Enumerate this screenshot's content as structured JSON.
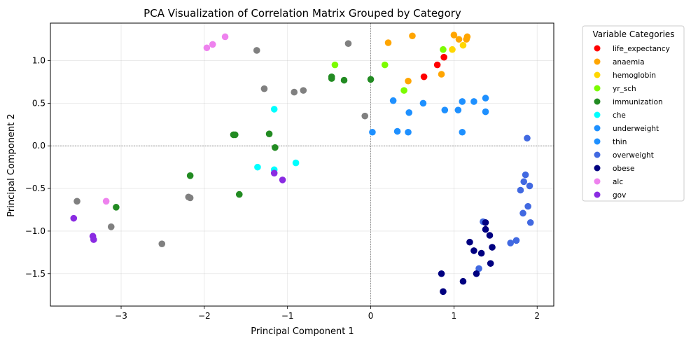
{
  "chart_data": {
    "type": "scatter",
    "title": "PCA Visualization of Correlation Matrix Grouped by Category",
    "xlabel": "Principal Component 1",
    "ylabel": "Principal Component 2",
    "xlim": [
      -3.85,
      2.2
    ],
    "ylim": [
      -1.88,
      1.44
    ],
    "xticks": [
      -3,
      -2,
      -1,
      0,
      1,
      2
    ],
    "xtick_labels": [
      "−3",
      "−2",
      "−1",
      "0",
      "1",
      "2"
    ],
    "yticks": [
      -1.5,
      -1.0,
      -0.5,
      0.0,
      0.5,
      1.0
    ],
    "ytick_labels": [
      "−1.5",
      "−1.0",
      "−0.5",
      "0.0",
      "0.5",
      "1.0"
    ],
    "grid": true,
    "zero_lines": true,
    "legend": {
      "title": "Variable Categories",
      "placement": "outside-right"
    },
    "series": [
      {
        "name": "life_expectancy",
        "color": "#ff0000",
        "points": [
          [
            0.8,
            0.95
          ],
          [
            0.88,
            1.04
          ],
          [
            0.64,
            0.81
          ]
        ]
      },
      {
        "name": "anaemia",
        "color": "#ffa500",
        "points": [
          [
            0.21,
            1.21
          ],
          [
            0.5,
            1.29
          ],
          [
            1.0,
            1.3
          ],
          [
            1.06,
            1.25
          ],
          [
            1.15,
            1.25
          ],
          [
            1.16,
            1.28
          ],
          [
            0.45,
            0.76
          ],
          [
            0.85,
            0.84
          ]
        ]
      },
      {
        "name": "hemoglobin",
        "color": "#ffd700",
        "points": [
          [
            0.98,
            1.13
          ],
          [
            1.11,
            1.18
          ]
        ]
      },
      {
        "name": "yr_sch",
        "color": "#7cfc00",
        "points": [
          [
            -0.43,
            0.95
          ],
          [
            0.17,
            0.95
          ],
          [
            0.87,
            1.13
          ],
          [
            0.4,
            0.65
          ]
        ]
      },
      {
        "name": "immunization",
        "color": "#228b22",
        "points": [
          [
            -0.47,
            0.81
          ],
          [
            -0.47,
            0.79
          ],
          [
            -0.32,
            0.77
          ],
          [
            0.0,
            0.78
          ],
          [
            -1.65,
            0.13
          ],
          [
            -1.63,
            0.13
          ],
          [
            -1.22,
            0.14
          ],
          [
            -1.15,
            -0.02
          ],
          [
            -2.17,
            -0.35
          ],
          [
            -1.58,
            -0.57
          ],
          [
            -3.06,
            -0.72
          ]
        ]
      },
      {
        "name": "che",
        "color": "#00ffff",
        "points": [
          [
            -1.16,
            0.43
          ],
          [
            -1.36,
            -0.25
          ],
          [
            -1.16,
            -0.28
          ],
          [
            -0.9,
            -0.2
          ]
        ]
      },
      {
        "name": "underweight",
        "color": "#1e90ff",
        "points": [
          [
            0.27,
            0.53
          ],
          [
            0.46,
            0.39
          ],
          [
            0.63,
            0.5
          ],
          [
            1.1,
            0.52
          ],
          [
            1.24,
            0.52
          ],
          [
            1.38,
            0.56
          ],
          [
            0.89,
            0.42
          ],
          [
            1.05,
            0.42
          ],
          [
            1.38,
            0.4
          ],
          [
            0.02,
            0.16
          ],
          [
            0.32,
            0.17
          ],
          [
            0.45,
            0.16
          ],
          [
            1.1,
            0.16
          ]
        ]
      },
      {
        "name": "thin",
        "color": "#1e90ff",
        "points": []
      },
      {
        "name": "overweight",
        "color": "#4169e1",
        "points": [
          [
            1.88,
            0.09
          ],
          [
            1.86,
            -0.34
          ],
          [
            1.84,
            -0.42
          ],
          [
            1.91,
            -0.47
          ],
          [
            1.8,
            -0.52
          ],
          [
            1.89,
            -0.71
          ],
          [
            1.83,
            -0.79
          ],
          [
            1.92,
            -0.9
          ],
          [
            1.35,
            -0.89
          ],
          [
            1.75,
            -1.11
          ],
          [
            1.68,
            -1.14
          ],
          [
            1.3,
            -1.44
          ]
        ]
      },
      {
        "name": "obese",
        "color": "#000080",
        "points": [
          [
            1.38,
            -0.9
          ],
          [
            1.38,
            -0.98
          ],
          [
            1.43,
            -1.05
          ],
          [
            1.19,
            -1.13
          ],
          [
            1.46,
            -1.19
          ],
          [
            1.24,
            -1.23
          ],
          [
            1.33,
            -1.26
          ],
          [
            1.44,
            -1.38
          ],
          [
            0.85,
            -1.5
          ],
          [
            1.27,
            -1.5
          ],
          [
            1.11,
            -1.59
          ],
          [
            0.87,
            -1.71
          ]
        ]
      },
      {
        "name": "alc",
        "color": "#ee82ee",
        "points": [
          [
            -1.97,
            1.15
          ],
          [
            -1.9,
            1.19
          ],
          [
            -1.75,
            1.28
          ],
          [
            -3.18,
            -0.65
          ]
        ]
      },
      {
        "name": "gov",
        "color": "#8a2be2",
        "points": [
          [
            -1.16,
            -0.32
          ],
          [
            -1.06,
            -0.4
          ],
          [
            -3.57,
            -0.85
          ],
          [
            -3.34,
            -1.06
          ],
          [
            -3.33,
            -1.1
          ]
        ]
      },
      {
        "name": "",
        "color": "#808080",
        "points": [
          [
            -1.37,
            1.12
          ],
          [
            -0.27,
            1.2
          ],
          [
            -1.28,
            0.67
          ],
          [
            -0.92,
            0.63
          ],
          [
            -0.81,
            0.65
          ],
          [
            -0.07,
            0.35
          ],
          [
            -2.19,
            -0.6
          ],
          [
            -2.17,
            -0.61
          ],
          [
            -3.53,
            -0.65
          ],
          [
            -3.12,
            -0.95
          ],
          [
            -2.51,
            -1.15
          ]
        ]
      }
    ]
  }
}
